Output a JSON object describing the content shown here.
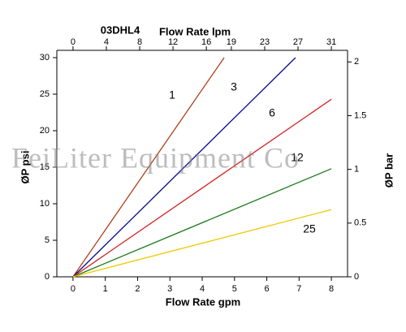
{
  "chart_data": {
    "type": "line",
    "title": "03DHL4",
    "x_label": "Flow Rate gpm",
    "x2_label": "Flow Rate lpm",
    "y_label": "ØP psi",
    "y2_label": "ØP bar",
    "watermark": "FeiLiter Equipment Co",
    "xlim": [
      -0.5,
      8.5
    ],
    "xticks": [
      0,
      1,
      2,
      3,
      4,
      5,
      6,
      7,
      8
    ],
    "x2lim": [
      -1.94,
      32.94
    ],
    "x2ticks": [
      0,
      4,
      8,
      12,
      16,
      19,
      23,
      27,
      31
    ],
    "ylim": [
      0,
      30
    ],
    "yticks": [
      0,
      5,
      10,
      15,
      20,
      25,
      30
    ],
    "y2lim": [
      0,
      2.04
    ],
    "y2ticks": [
      0,
      0.5,
      1,
      1.5,
      2
    ],
    "series": [
      {
        "name": "1",
        "color": "#b0401c",
        "x": [
          0,
          4.68
        ],
        "values": [
          0,
          30
        ]
      },
      {
        "name": "3",
        "color": "#0a0a8c",
        "x": [
          0,
          6.89
        ],
        "values": [
          0,
          30
        ]
      },
      {
        "name": "6",
        "color": "#d42020",
        "x": [
          0,
          8
        ],
        "values": [
          0,
          24.3
        ]
      },
      {
        "name": "12",
        "color": "#1a7a1a",
        "x": [
          0,
          8
        ],
        "values": [
          0,
          14.8
        ]
      },
      {
        "name": "25",
        "color": "#f0c800",
        "x": [
          0,
          8
        ],
        "values": [
          0,
          9.2
        ]
      }
    ]
  }
}
